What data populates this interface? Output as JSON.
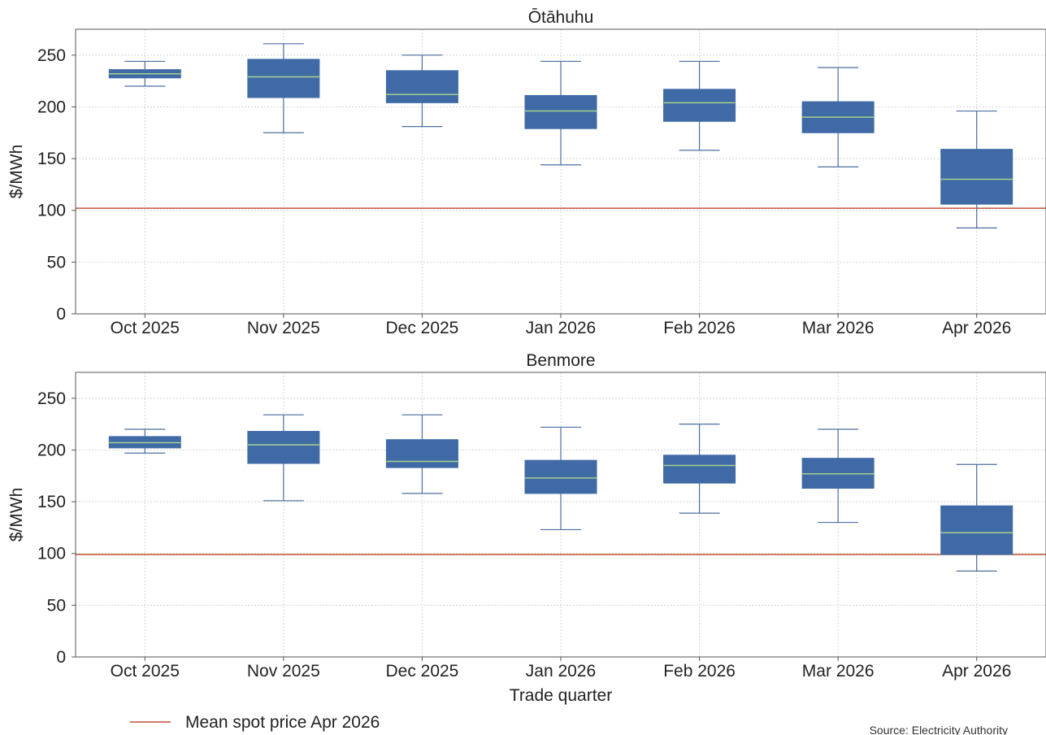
{
  "chart_data": [
    {
      "type": "box",
      "title": "Ōtāhuhu",
      "xlabel": "",
      "ylabel": "$/MWh",
      "ylim": [
        0,
        275
      ],
      "yticks": [
        0,
        50,
        100,
        150,
        200,
        250
      ],
      "grid": true,
      "categories": [
        "Oct 2025",
        "Nov 2025",
        "Dec 2025",
        "Jan 2026",
        "Feb 2026",
        "Mar 2026",
        "Apr 2026"
      ],
      "boxes": [
        {
          "min": 220,
          "q1": 228,
          "median": 232,
          "q3": 236,
          "max": 244
        },
        {
          "min": 175,
          "q1": 209,
          "median": 229,
          "q3": 246,
          "max": 261
        },
        {
          "min": 181,
          "q1": 204,
          "median": 212,
          "q3": 235,
          "max": 250
        },
        {
          "min": 144,
          "q1": 179,
          "median": 196,
          "q3": 211,
          "max": 244
        },
        {
          "min": 158,
          "q1": 186,
          "median": 204,
          "q3": 217,
          "max": 244
        },
        {
          "min": 142,
          "q1": 175,
          "median": 190,
          "q3": 205,
          "max": 238
        },
        {
          "min": 83,
          "q1": 106,
          "median": 130,
          "q3": 159,
          "max": 196
        }
      ],
      "reference_line": {
        "value": 102
      }
    },
    {
      "type": "box",
      "title": "Benmore",
      "xlabel": "Trade quarter",
      "ylabel": "$/MWh",
      "ylim": [
        0,
        275
      ],
      "yticks": [
        0,
        50,
        100,
        150,
        200,
        250
      ],
      "grid": true,
      "categories": [
        "Oct 2025",
        "Nov 2025",
        "Dec 2025",
        "Jan 2026",
        "Feb 2026",
        "Mar 2026",
        "Apr 2026"
      ],
      "boxes": [
        {
          "min": 197,
          "q1": 202,
          "median": 207,
          "q3": 213,
          "max": 220
        },
        {
          "min": 151,
          "q1": 187,
          "median": 205,
          "q3": 218,
          "max": 234
        },
        {
          "min": 158,
          "q1": 183,
          "median": 189,
          "q3": 210,
          "max": 234
        },
        {
          "min": 123,
          "q1": 158,
          "median": 173,
          "q3": 190,
          "max": 222
        },
        {
          "min": 139,
          "q1": 168,
          "median": 185,
          "q3": 195,
          "max": 225
        },
        {
          "min": 130,
          "q1": 163,
          "median": 177,
          "q3": 192,
          "max": 220
        },
        {
          "min": 83,
          "q1": 99,
          "median": 120,
          "q3": 146,
          "max": 186
        }
      ],
      "reference_line": {
        "value": 99
      }
    }
  ],
  "legend": {
    "label": "Mean spot price Apr 2026",
    "placement": "bottom-left"
  },
  "source": "Source: Electricity Authority",
  "colors": {
    "box": "#3f6aa6",
    "median": "#a8d08d",
    "whisker": "#4c6f9e",
    "mean_line": "#c0553a"
  }
}
